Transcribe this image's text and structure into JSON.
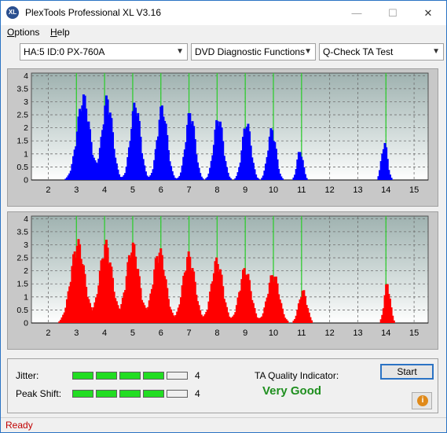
{
  "window": {
    "title": "PlexTools Professional XL V3.16",
    "icon_text": "XL",
    "minimize": "—",
    "maximize": "☐",
    "close": "✕"
  },
  "menu": [
    {
      "label": "Options",
      "key": "O",
      "rest": "ptions"
    },
    {
      "label": "Help",
      "key": "H",
      "rest": "elp"
    }
  ],
  "toolbar": {
    "drive": "HA:5 ID:0  PX-760A",
    "function": "DVD Diagnostic Functions",
    "test": "Q-Check TA Test"
  },
  "colors": {
    "top_bars": "#0000ff",
    "bottom_bars": "#ff0000",
    "marker_lines": "#33cc33",
    "meter_on": "#22dd22",
    "meter_off": "#f0f0f0",
    "status": "#c00000",
    "quality": "#1f8f1f"
  },
  "chart_data": [
    {
      "type": "bar",
      "name": "top",
      "x_ticks": [
        "2",
        "3",
        "4",
        "5",
        "6",
        "7",
        "8",
        "9",
        "10",
        "11",
        "12",
        "13",
        "14",
        "15"
      ],
      "y_ticks": [
        "4",
        "3.5",
        "3",
        "2.5",
        "2",
        "1.5",
        "1",
        "0.5",
        "0"
      ],
      "xlim": [
        1.4,
        15.5
      ],
      "ylim": [
        0,
        4.1
      ],
      "markers": [
        3,
        4,
        5,
        6,
        7,
        8,
        9,
        10,
        11,
        14
      ],
      "peaks": [
        {
          "center": 3.25,
          "height": 3.35,
          "width": 0.22
        },
        {
          "center": 4.1,
          "height": 3.3,
          "width": 0.18
        },
        {
          "center": 5.1,
          "height": 3.1,
          "width": 0.17
        },
        {
          "center": 6.05,
          "height": 2.95,
          "width": 0.17
        },
        {
          "center": 7.05,
          "height": 2.75,
          "width": 0.16
        },
        {
          "center": 8.05,
          "height": 2.55,
          "width": 0.16
        },
        {
          "center": 9.05,
          "height": 2.35,
          "width": 0.15
        },
        {
          "center": 9.95,
          "height": 2.05,
          "width": 0.14
        },
        {
          "center": 10.95,
          "height": 1.2,
          "width": 0.1
        },
        {
          "center": 13.95,
          "height": 1.5,
          "width": 0.1
        }
      ]
    },
    {
      "type": "bar",
      "name": "bottom",
      "x_ticks": [
        "2",
        "3",
        "4",
        "5",
        "6",
        "7",
        "8",
        "9",
        "10",
        "11",
        "12",
        "13",
        "14",
        "15"
      ],
      "y_ticks": [
        "4",
        "3.5",
        "3",
        "2.5",
        "2",
        "1.5",
        "1",
        "0.5",
        "0"
      ],
      "xlim": [
        1.4,
        15.5
      ],
      "ylim": [
        0,
        4.1
      ],
      "markers": [
        3,
        4,
        5,
        6,
        7,
        8,
        9,
        10,
        11,
        14
      ],
      "peaks": [
        {
          "center": 3.05,
          "height": 3.25,
          "width": 0.24
        },
        {
          "center": 4.05,
          "height": 3.2,
          "width": 0.22
        },
        {
          "center": 5.0,
          "height": 3.15,
          "width": 0.22
        },
        {
          "center": 5.95,
          "height": 2.95,
          "width": 0.22
        },
        {
          "center": 7.0,
          "height": 2.75,
          "width": 0.21
        },
        {
          "center": 8.0,
          "height": 2.55,
          "width": 0.2
        },
        {
          "center": 9.0,
          "height": 2.2,
          "width": 0.2
        },
        {
          "center": 10.0,
          "height": 2.0,
          "width": 0.2
        },
        {
          "center": 11.05,
          "height": 1.3,
          "width": 0.14
        },
        {
          "center": 14.05,
          "height": 1.6,
          "width": 0.1
        }
      ]
    }
  ],
  "results": {
    "jitter_label": "Jitter:",
    "jitter_value": "4",
    "jitter_level": 4,
    "peak_shift_label": "Peak Shift:",
    "peak_shift_value": "4",
    "peak_shift_level": 4,
    "meter_segments": 5,
    "ta_label": "TA Quality Indicator:",
    "ta_value": "Very Good",
    "start_label": "Start",
    "info_icon": "i"
  },
  "status": {
    "text": "Ready"
  }
}
